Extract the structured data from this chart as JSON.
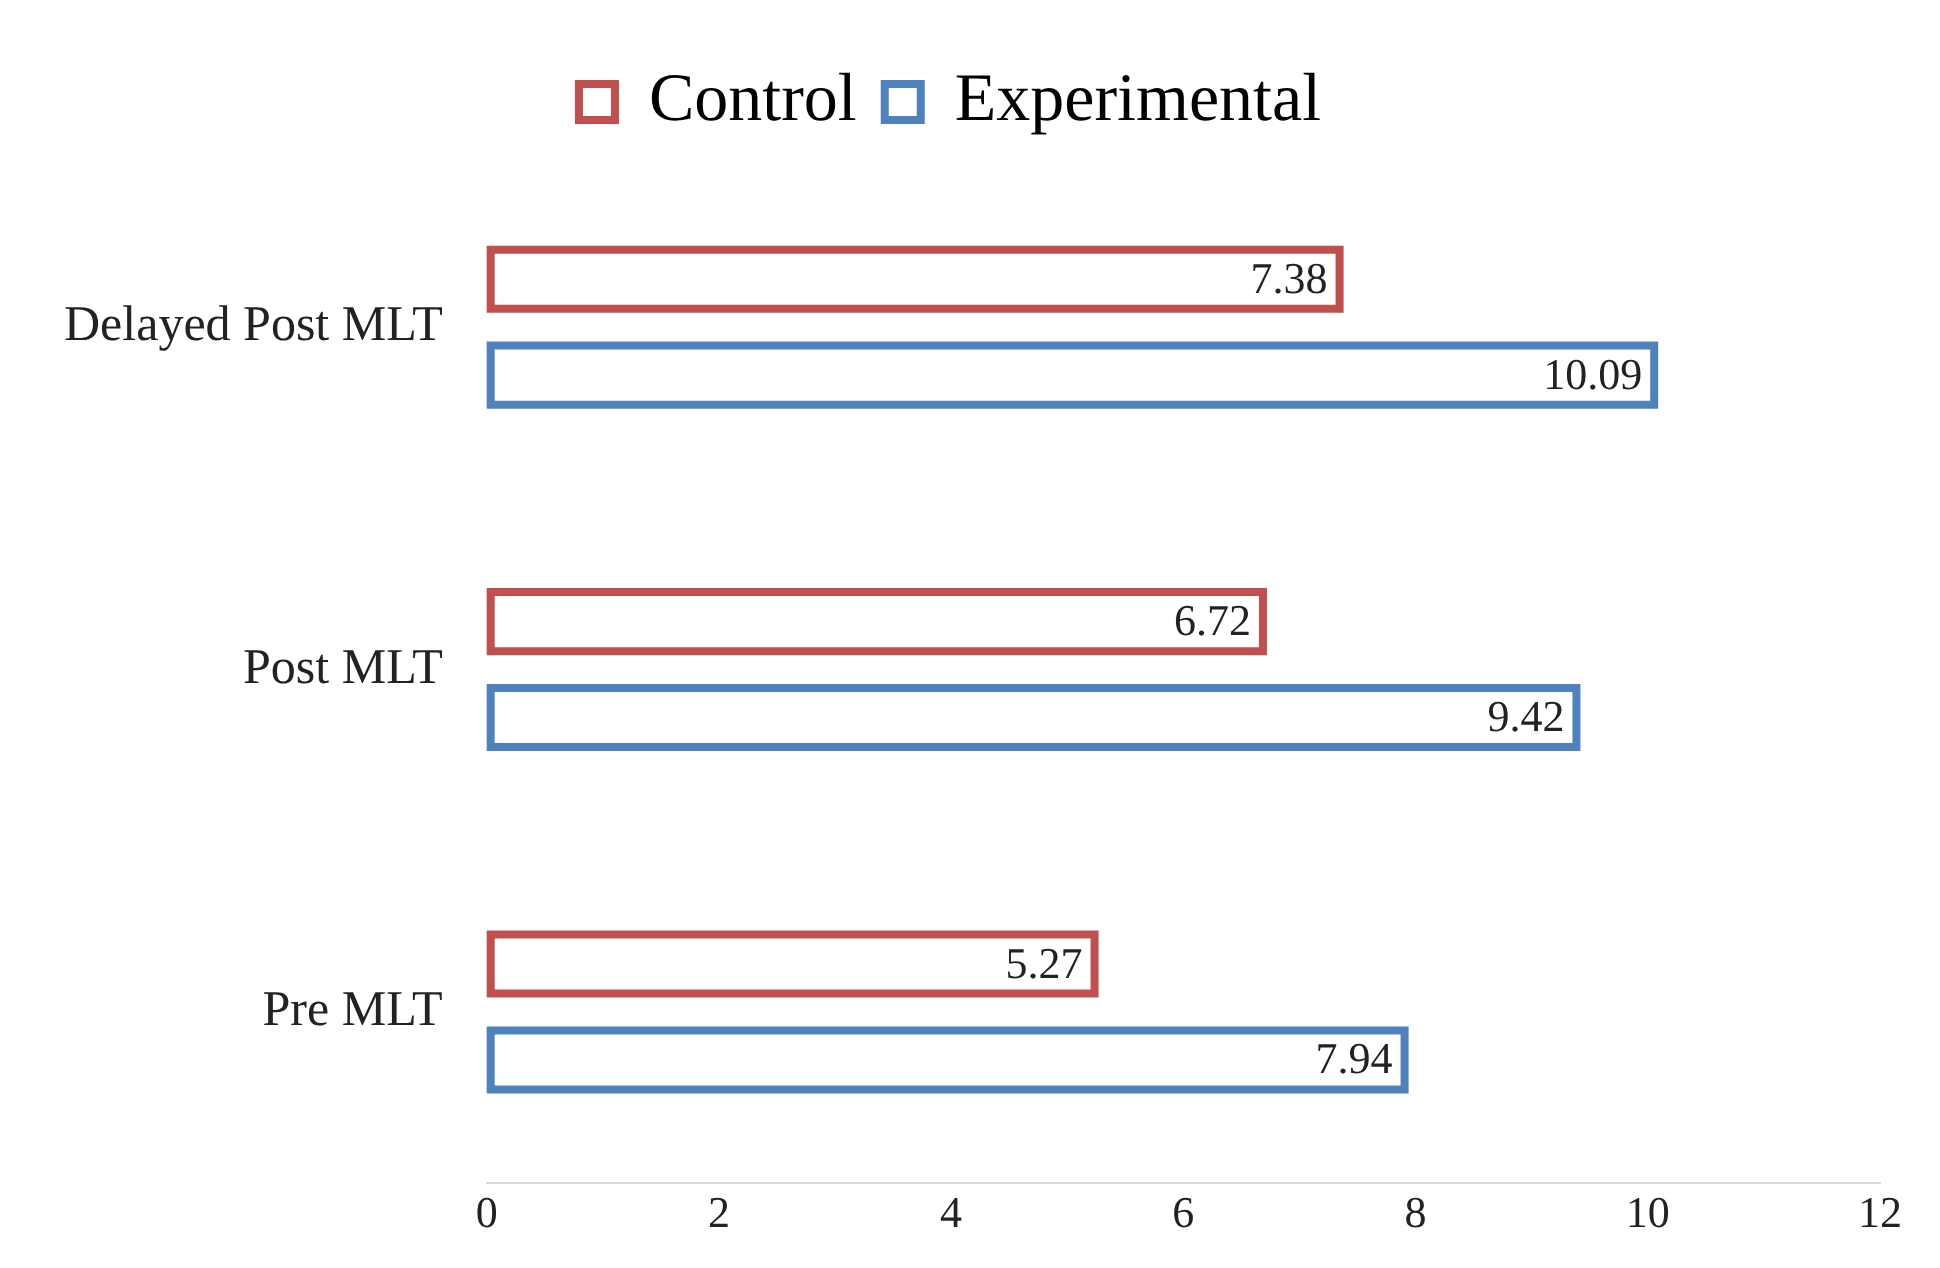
{
  "chart_data": {
    "type": "bar",
    "orientation": "horizontal",
    "categories": [
      "Delayed Post MLT",
      "Post MLT",
      "Pre MLT"
    ],
    "series": [
      {
        "name": "Control",
        "color": "#c0504d",
        "values": [
          7.38,
          6.72,
          5.27
        ]
      },
      {
        "name": "Experimental",
        "color": "#4f81bd",
        "values": [
          10.09,
          9.42,
          7.94
        ]
      }
    ],
    "xlim": [
      0,
      12
    ],
    "xticks": [
      0,
      2,
      4,
      6,
      8,
      10,
      12
    ],
    "grid": false,
    "legend": "top",
    "data_labels": true
  }
}
